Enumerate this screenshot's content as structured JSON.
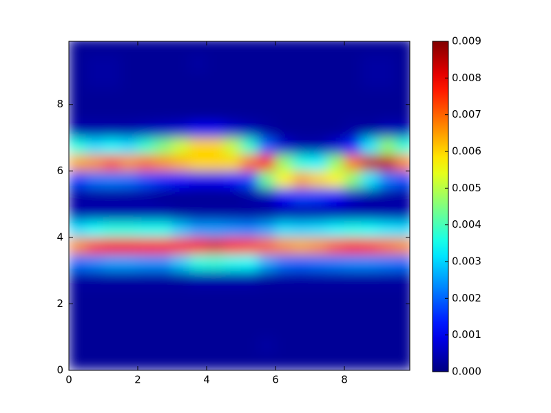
{
  "chart_data": {
    "type": "heatmap",
    "x": [
      0.25,
      0.75,
      1.25,
      1.75,
      2.25,
      2.75,
      3.25,
      3.75,
      4.25,
      4.75,
      5.25,
      5.75,
      6.25,
      6.75,
      7.25,
      7.75,
      8.25,
      8.75,
      9.25,
      9.75
    ],
    "y": [
      0.25,
      0.75,
      1.25,
      1.75,
      2.25,
      2.75,
      3.25,
      3.75,
      4.25,
      4.75,
      5.25,
      5.75,
      6.25,
      6.75,
      7.25,
      7.75,
      8.25,
      8.75,
      9.25,
      9.75
    ],
    "z": [
      [
        0.0002,
        0.0002,
        0.0002,
        0.0002,
        0.0002,
        0.0002,
        0.0002,
        0.0002,
        0.0002,
        0.0002,
        0.0002,
        0.0002,
        0.0002,
        0.0002,
        0.0002,
        0.0002,
        0.0002,
        0.0002,
        0.0002,
        0.0002
      ],
      [
        0.0002,
        0.0002,
        0.0002,
        0.0002,
        0.0002,
        0.0002,
        0.0002,
        0.0002,
        0.0002,
        0.0002,
        0.0002,
        0.0003,
        0.0002,
        0.0002,
        0.0002,
        0.0002,
        0.0002,
        0.0002,
        0.0002,
        0.0002
      ],
      [
        0.0002,
        0.0002,
        0.0002,
        0.0002,
        0.0002,
        0.0002,
        0.0002,
        0.0002,
        0.0002,
        0.0002,
        0.0002,
        0.0002,
        0.0002,
        0.0002,
        0.0002,
        0.0002,
        0.0002,
        0.0002,
        0.0002,
        0.0002
      ],
      [
        0.0002,
        0.0002,
        0.0002,
        0.0002,
        0.0002,
        0.0002,
        0.0002,
        0.0002,
        0.0002,
        0.0002,
        0.0002,
        0.0002,
        0.0002,
        0.0002,
        0.0002,
        0.0002,
        0.0002,
        0.0002,
        0.0002,
        0.0002
      ],
      [
        0.0002,
        0.0002,
        0.0002,
        0.0002,
        0.0002,
        0.0002,
        0.0002,
        0.0002,
        0.0002,
        0.0002,
        0.0002,
        0.0002,
        0.0002,
        0.0002,
        0.0002,
        0.0002,
        0.0002,
        0.0002,
        0.0002,
        0.0002
      ],
      [
        0.0003,
        0.0003,
        0.0003,
        0.0003,
        0.0003,
        0.0003,
        0.0003,
        0.0004,
        0.0004,
        0.0004,
        0.0004,
        0.0003,
        0.0003,
        0.0003,
        0.0003,
        0.0003,
        0.0003,
        0.0003,
        0.0003,
        0.0003
      ],
      [
        0.0021,
        0.0023,
        0.0025,
        0.0025,
        0.0024,
        0.0024,
        0.0029,
        0.0036,
        0.0037,
        0.0035,
        0.0034,
        0.0026,
        0.0021,
        0.002,
        0.0021,
        0.0022,
        0.0023,
        0.0023,
        0.0022,
        0.0021
      ],
      [
        0.0066,
        0.0073,
        0.0079,
        0.0079,
        0.0077,
        0.0076,
        0.0076,
        0.0079,
        0.0081,
        0.0076,
        0.0073,
        0.007,
        0.0066,
        0.0064,
        0.0066,
        0.0071,
        0.0075,
        0.0073,
        0.0069,
        0.0066
      ],
      [
        0.0031,
        0.0034,
        0.0036,
        0.0036,
        0.0035,
        0.0035,
        0.0029,
        0.0025,
        0.0025,
        0.0024,
        0.0023,
        0.0026,
        0.0031,
        0.003,
        0.0031,
        0.0033,
        0.0035,
        0.0034,
        0.0032,
        0.0031
      ],
      [
        0.0004,
        0.0004,
        0.0004,
        0.0004,
        0.0004,
        0.0004,
        0.0003,
        0.0003,
        0.0003,
        0.0003,
        0.0003,
        0.0003,
        0.0004,
        0.0004,
        0.0004,
        0.0004,
        0.0004,
        0.0004,
        0.0004,
        0.0004
      ],
      [
        0.0003,
        0.0003,
        0.0003,
        0.0003,
        0.0003,
        0.0002,
        0.0002,
        0.0002,
        0.0002,
        0.0002,
        0.0003,
        0.0005,
        0.0011,
        0.0017,
        0.0016,
        0.0011,
        0.0006,
        0.0003,
        0.0003,
        0.0003
      ],
      [
        0.0017,
        0.0021,
        0.0022,
        0.0021,
        0.0018,
        0.0015,
        0.0012,
        0.001,
        0.001,
        0.0012,
        0.0018,
        0.0043,
        0.0057,
        0.0064,
        0.006,
        0.0057,
        0.0046,
        0.0032,
        0.0022,
        0.0018
      ],
      [
        0.0064,
        0.0066,
        0.0071,
        0.0066,
        0.0069,
        0.0066,
        0.0063,
        0.006,
        0.006,
        0.006,
        0.0069,
        0.0077,
        0.0047,
        0.0036,
        0.0033,
        0.0047,
        0.0068,
        0.0084,
        0.0084,
        0.0067
      ],
      [
        0.0036,
        0.0031,
        0.0033,
        0.0031,
        0.0038,
        0.0045,
        0.0052,
        0.006,
        0.006,
        0.0051,
        0.0038,
        0.002,
        0.0007,
        0.0004,
        0.0004,
        0.0007,
        0.0015,
        0.0032,
        0.0046,
        0.0037
      ],
      [
        0.0004,
        0.0004,
        0.0004,
        0.0004,
        0.0005,
        0.0006,
        0.0007,
        0.001,
        0.001,
        0.0007,
        0.0005,
        0.0003,
        0.0002,
        0.0002,
        0.0002,
        0.0002,
        0.0003,
        0.0003,
        0.0005,
        0.0005
      ],
      [
        0.0002,
        0.0002,
        0.0002,
        0.0002,
        0.0002,
        0.0002,
        0.0002,
        0.0002,
        0.0002,
        0.0002,
        0.0002,
        0.0002,
        0.0002,
        0.0002,
        0.0002,
        0.0002,
        0.0002,
        0.0002,
        0.0002,
        0.0002
      ],
      [
        0.0002,
        0.0002,
        0.0002,
        0.0002,
        0.0002,
        0.0002,
        0.0002,
        0.0002,
        0.0002,
        0.0002,
        0.0002,
        0.0002,
        0.0002,
        0.0002,
        0.0002,
        0.0002,
        0.0002,
        0.0002,
        0.0002,
        0.0002
      ],
      [
        0.0002,
        0.0003,
        0.0003,
        0.0002,
        0.0002,
        0.0002,
        0.0002,
        0.0002,
        0.0002,
        0.0002,
        0.0002,
        0.0002,
        0.0002,
        0.0002,
        0.0002,
        0.0002,
        0.0002,
        0.0003,
        0.0003,
        0.0002
      ],
      [
        0.0002,
        0.0003,
        0.0003,
        0.0002,
        0.0002,
        0.0002,
        0.0002,
        0.0003,
        0.0002,
        0.0002,
        0.0002,
        0.0002,
        0.0002,
        0.0002,
        0.0002,
        0.0002,
        0.0002,
        0.0003,
        0.0003,
        0.0002
      ],
      [
        0.0002,
        0.0002,
        0.0002,
        0.0002,
        0.0002,
        0.0002,
        0.0002,
        0.0002,
        0.0002,
        0.0002,
        0.0002,
        0.0002,
        0.0002,
        0.0002,
        0.0002,
        0.0002,
        0.0002,
        0.0002,
        0.0002,
        0.0002
      ]
    ],
    "xlim": [
      0,
      9.9
    ],
    "ylim": [
      0,
      9.9
    ],
    "xticks": [
      0,
      2,
      4,
      6,
      8
    ],
    "yticks": [
      0,
      2,
      4,
      6,
      8
    ],
    "colormap": "jet",
    "clim": [
      0,
      0.009
    ],
    "cticks": [
      {
        "value": 0,
        "label": "0.000"
      },
      {
        "value": 0.001,
        "label": "0.001"
      },
      {
        "value": 0.002,
        "label": "0.002"
      },
      {
        "value": 0.003,
        "label": "0.003"
      },
      {
        "value": 0.004,
        "label": "0.004"
      },
      {
        "value": 0.005,
        "label": "0.005"
      },
      {
        "value": 0.006,
        "label": "0.006"
      },
      {
        "value": 0.007,
        "label": "0.007"
      },
      {
        "value": 0.008,
        "label": "0.008"
      },
      {
        "value": 0.009,
        "label": "0.009"
      }
    ]
  }
}
